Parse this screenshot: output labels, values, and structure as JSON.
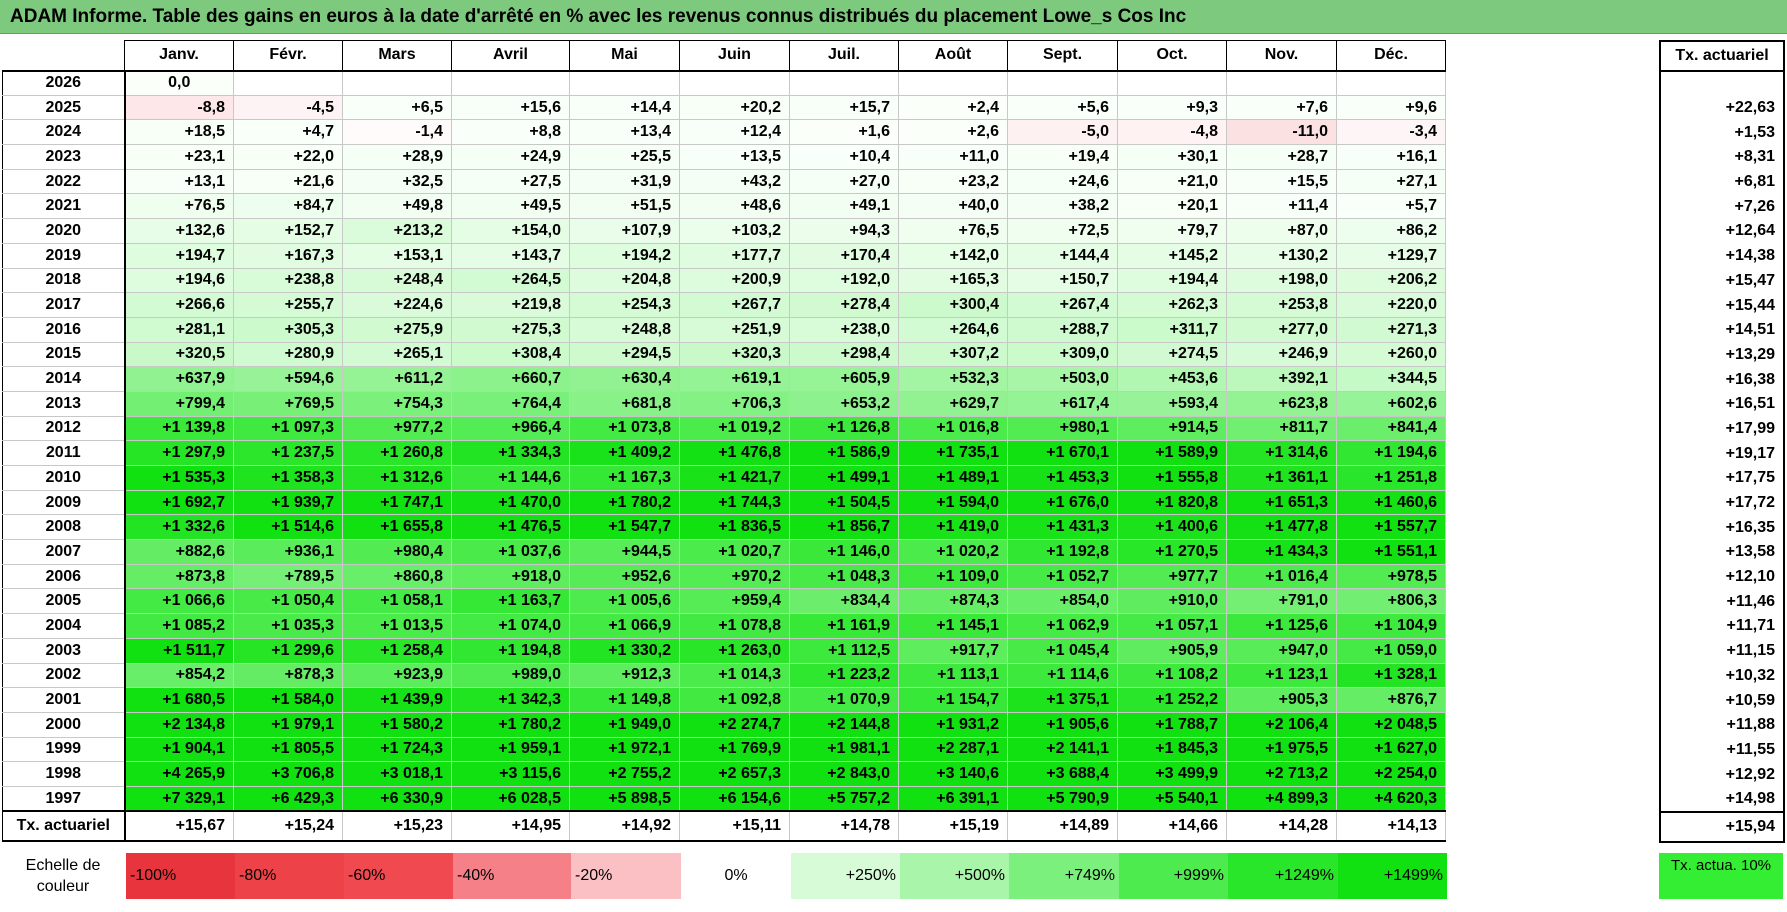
{
  "title": "ADAM Informe. Table des gains en euros à la date d'arrêté en % avec les revenus connus distribués du placement Lowe_s Cos Inc",
  "months": [
    "Janv.",
    "Févr.",
    "Mars",
    "Avril",
    "Mai",
    "Juin",
    "Juil.",
    "Août",
    "Sept.",
    "Oct.",
    "Nov.",
    "Déc."
  ],
  "tx_header": "Tx. actuariel",
  "rows": [
    {
      "year": "2026",
      "values": [
        "0,0",
        "",
        "",
        "",
        "",
        "",
        "",
        "",
        "",
        "",
        "",
        ""
      ],
      "tx": ""
    },
    {
      "year": "2025",
      "values": [
        "-8,8",
        "-4,5",
        "+6,5",
        "+15,6",
        "+14,4",
        "+20,2",
        "+15,7",
        "+2,4",
        "+5,6",
        "+9,3",
        "+7,6",
        "+9,6"
      ],
      "tx": "+22,63"
    },
    {
      "year": "2024",
      "values": [
        "+18,5",
        "+4,7",
        "-1,4",
        "+8,8",
        "+13,4",
        "+12,4",
        "+1,6",
        "+2,6",
        "-5,0",
        "-4,8",
        "-11,0",
        "-3,4"
      ],
      "tx": "+1,53"
    },
    {
      "year": "2023",
      "values": [
        "+23,1",
        "+22,0",
        "+28,9",
        "+24,9",
        "+25,5",
        "+13,5",
        "+10,4",
        "+11,0",
        "+19,4",
        "+30,1",
        "+28,7",
        "+16,1"
      ],
      "tx": "+8,31"
    },
    {
      "year": "2022",
      "values": [
        "+13,1",
        "+21,6",
        "+32,5",
        "+27,5",
        "+31,9",
        "+43,2",
        "+27,0",
        "+23,2",
        "+24,6",
        "+21,0",
        "+15,5",
        "+27,1"
      ],
      "tx": "+6,81"
    },
    {
      "year": "2021",
      "values": [
        "+76,5",
        "+84,7",
        "+49,8",
        "+49,5",
        "+51,5",
        "+48,6",
        "+49,1",
        "+40,0",
        "+38,2",
        "+20,1",
        "+11,4",
        "+5,7"
      ],
      "tx": "+7,26"
    },
    {
      "year": "2020",
      "values": [
        "+132,6",
        "+152,7",
        "+213,2",
        "+154,0",
        "+107,9",
        "+103,2",
        "+94,3",
        "+76,5",
        "+72,5",
        "+79,7",
        "+87,0",
        "+86,2"
      ],
      "tx": "+12,64"
    },
    {
      "year": "2019",
      "values": [
        "+194,7",
        "+167,3",
        "+153,1",
        "+143,7",
        "+194,2",
        "+177,7",
        "+170,4",
        "+142,0",
        "+144,4",
        "+145,2",
        "+130,2",
        "+129,7"
      ],
      "tx": "+14,38"
    },
    {
      "year": "2018",
      "values": [
        "+194,6",
        "+238,8",
        "+248,4",
        "+264,5",
        "+204,8",
        "+200,9",
        "+192,0",
        "+165,3",
        "+150,7",
        "+194,4",
        "+198,0",
        "+206,2"
      ],
      "tx": "+15,47"
    },
    {
      "year": "2017",
      "values": [
        "+266,6",
        "+255,7",
        "+224,6",
        "+219,8",
        "+254,3",
        "+267,7",
        "+278,4",
        "+300,4",
        "+267,4",
        "+262,3",
        "+253,8",
        "+220,0"
      ],
      "tx": "+15,44"
    },
    {
      "year": "2016",
      "values": [
        "+281,1",
        "+305,3",
        "+275,9",
        "+275,3",
        "+248,8",
        "+251,9",
        "+238,0",
        "+264,6",
        "+288,7",
        "+311,7",
        "+277,0",
        "+271,3"
      ],
      "tx": "+14,51"
    },
    {
      "year": "2015",
      "values": [
        "+320,5",
        "+280,9",
        "+265,1",
        "+308,4",
        "+294,5",
        "+320,3",
        "+298,4",
        "+307,2",
        "+309,0",
        "+274,5",
        "+246,9",
        "+260,0"
      ],
      "tx": "+13,29"
    },
    {
      "year": "2014",
      "values": [
        "+637,9",
        "+594,6",
        "+611,2",
        "+660,7",
        "+630,4",
        "+619,1",
        "+605,9",
        "+532,3",
        "+503,0",
        "+453,6",
        "+392,1",
        "+344,5"
      ],
      "tx": "+16,38"
    },
    {
      "year": "2013",
      "values": [
        "+799,4",
        "+769,5",
        "+754,3",
        "+764,4",
        "+681,8",
        "+706,3",
        "+653,2",
        "+629,7",
        "+617,4",
        "+593,4",
        "+623,8",
        "+602,6"
      ],
      "tx": "+16,51"
    },
    {
      "year": "2012",
      "values": [
        "+1 139,8",
        "+1 097,3",
        "+977,2",
        "+966,4",
        "+1 073,8",
        "+1 019,2",
        "+1 126,8",
        "+1 016,8",
        "+980,1",
        "+914,5",
        "+811,7",
        "+841,4"
      ],
      "tx": "+17,99"
    },
    {
      "year": "2011",
      "values": [
        "+1 297,9",
        "+1 237,5",
        "+1 260,8",
        "+1 334,3",
        "+1 409,2",
        "+1 476,8",
        "+1 586,9",
        "+1 735,1",
        "+1 670,1",
        "+1 589,9",
        "+1 314,6",
        "+1 194,6"
      ],
      "tx": "+19,17"
    },
    {
      "year": "2010",
      "values": [
        "+1 535,3",
        "+1 358,3",
        "+1 312,6",
        "+1 144,6",
        "+1 167,3",
        "+1 421,7",
        "+1 499,1",
        "+1 489,1",
        "+1 453,3",
        "+1 555,8",
        "+1 361,1",
        "+1 251,8"
      ],
      "tx": "+17,75"
    },
    {
      "year": "2009",
      "values": [
        "+1 692,7",
        "+1 939,7",
        "+1 747,1",
        "+1 470,0",
        "+1 780,2",
        "+1 744,3",
        "+1 504,5",
        "+1 594,0",
        "+1 676,0",
        "+1 820,8",
        "+1 651,3",
        "+1 460,6"
      ],
      "tx": "+17,72"
    },
    {
      "year": "2008",
      "values": [
        "+1 332,6",
        "+1 514,6",
        "+1 655,8",
        "+1 476,5",
        "+1 547,7",
        "+1 836,5",
        "+1 856,7",
        "+1 419,0",
        "+1 431,3",
        "+1 400,6",
        "+1 477,8",
        "+1 557,7"
      ],
      "tx": "+16,35"
    },
    {
      "year": "2007",
      "values": [
        "+882,6",
        "+936,1",
        "+980,4",
        "+1 037,6",
        "+944,5",
        "+1 020,7",
        "+1 146,0",
        "+1 020,2",
        "+1 192,8",
        "+1 270,5",
        "+1 434,3",
        "+1 551,1"
      ],
      "tx": "+13,58"
    },
    {
      "year": "2006",
      "values": [
        "+873,8",
        "+789,5",
        "+860,8",
        "+918,0",
        "+952,6",
        "+970,2",
        "+1 048,3",
        "+1 109,0",
        "+1 052,7",
        "+977,7",
        "+1 016,4",
        "+978,5"
      ],
      "tx": "+12,10"
    },
    {
      "year": "2005",
      "values": [
        "+1 066,6",
        "+1 050,4",
        "+1 058,1",
        "+1 163,7",
        "+1 005,6",
        "+959,4",
        "+834,4",
        "+874,3",
        "+854,0",
        "+910,0",
        "+791,0",
        "+806,3"
      ],
      "tx": "+11,46"
    },
    {
      "year": "2004",
      "values": [
        "+1 085,2",
        "+1 035,3",
        "+1 013,5",
        "+1 074,0",
        "+1 066,9",
        "+1 078,8",
        "+1 161,9",
        "+1 145,1",
        "+1 062,9",
        "+1 057,1",
        "+1 125,6",
        "+1 104,9"
      ],
      "tx": "+11,71"
    },
    {
      "year": "2003",
      "values": [
        "+1 511,7",
        "+1 299,6",
        "+1 258,4",
        "+1 194,8",
        "+1 330,2",
        "+1 263,0",
        "+1 112,5",
        "+917,7",
        "+1 045,4",
        "+905,9",
        "+947,0",
        "+1 059,0"
      ],
      "tx": "+11,15"
    },
    {
      "year": "2002",
      "values": [
        "+854,2",
        "+878,3",
        "+923,9",
        "+989,0",
        "+912,3",
        "+1 014,3",
        "+1 223,2",
        "+1 113,1",
        "+1 114,6",
        "+1 108,2",
        "+1 123,1",
        "+1 328,1"
      ],
      "tx": "+10,32"
    },
    {
      "year": "2001",
      "values": [
        "+1 680,5",
        "+1 584,0",
        "+1 439,9",
        "+1 342,3",
        "+1 149,8",
        "+1 092,8",
        "+1 070,9",
        "+1 154,7",
        "+1 375,1",
        "+1 252,2",
        "+905,3",
        "+876,7"
      ],
      "tx": "+10,59"
    },
    {
      "year": "2000",
      "values": [
        "+2 134,8",
        "+1 979,1",
        "+1 580,2",
        "+1 780,2",
        "+1 949,0",
        "+2 274,7",
        "+2 144,8",
        "+1 931,2",
        "+1 905,6",
        "+1 788,7",
        "+2 106,4",
        "+2 048,5"
      ],
      "tx": "+11,88"
    },
    {
      "year": "1999",
      "values": [
        "+1 904,1",
        "+1 805,5",
        "+1 724,3",
        "+1 959,1",
        "+1 972,1",
        "+1 769,9",
        "+1 981,1",
        "+2 287,1",
        "+2 141,1",
        "+1 845,3",
        "+1 975,5",
        "+1 627,0"
      ],
      "tx": "+11,55"
    },
    {
      "year": "1998",
      "values": [
        "+4 265,9",
        "+3 706,8",
        "+3 018,1",
        "+3 115,6",
        "+2 755,2",
        "+2 657,3",
        "+2 843,0",
        "+3 140,6",
        "+3 688,4",
        "+3 499,9",
        "+2 713,2",
        "+2 254,0"
      ],
      "tx": "+12,92"
    },
    {
      "year": "1997",
      "values": [
        "+7 329,1",
        "+6 429,3",
        "+6 330,9",
        "+6 028,5",
        "+5 898,5",
        "+6 154,6",
        "+5 757,2",
        "+6 391,1",
        "+5 790,9",
        "+5 540,1",
        "+4 899,3",
        "+4 620,3"
      ],
      "tx": "+14,98"
    }
  ],
  "footer": {
    "label": "Tx. actuariel",
    "values": [
      "+15,67",
      "+15,24",
      "+15,23",
      "+14,95",
      "+14,92",
      "+15,11",
      "+14,78",
      "+15,19",
      "+14,89",
      "+14,66",
      "+14,28",
      "+14,13"
    ],
    "total": "+15,94"
  },
  "legend": {
    "label": "Echelle de couleur",
    "items": [
      {
        "text": "-100%",
        "color": "#e8343c",
        "align": "left"
      },
      {
        "text": "-80%",
        "color": "#ec4248",
        "align": "left"
      },
      {
        "text": "-60%",
        "color": "#f04a50",
        "align": "left"
      },
      {
        "text": "-40%",
        "color": "#f68088",
        "align": "left"
      },
      {
        "text": "-20%",
        "color": "#fbc0c4",
        "align": "left"
      },
      {
        "text": "0%",
        "color": "#ffffff",
        "align": "center"
      },
      {
        "text": "+250%",
        "color": "#d6fbd6",
        "align": "right"
      },
      {
        "text": "+500%",
        "color": "#a9f5a9",
        "align": "right"
      },
      {
        "text": "+749%",
        "color": "#7cf07c",
        "align": "right"
      },
      {
        "text": "+999%",
        "color": "#4eeb4e",
        "align": "right"
      },
      {
        "text": "+1249%",
        "color": "#2ae62a",
        "align": "right"
      },
      {
        "text": "+1499%",
        "color": "#11e011",
        "align": "right"
      }
    ],
    "actua_label": "Tx. actua. 10%",
    "actua_color": "#33ee33"
  }
}
